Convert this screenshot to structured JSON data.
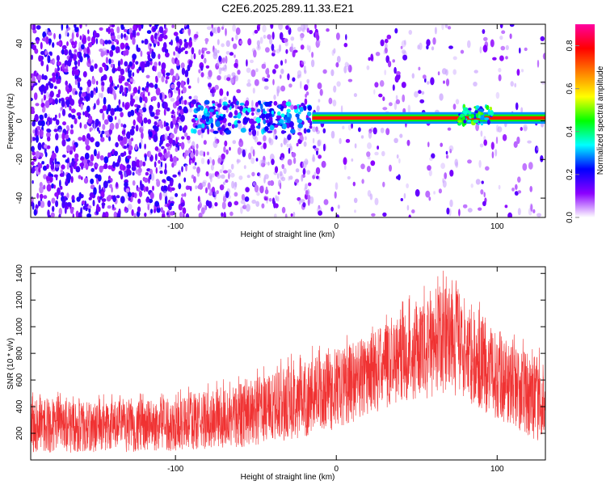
{
  "title": "C2E6.2025.289.11.33.E21",
  "chart_data": [
    {
      "type": "heatmap",
      "xlabel": "Height of straight line (km)",
      "ylabel": "Frequency (Hz)",
      "xlim": [
        -190,
        130
      ],
      "ylim": [
        -50,
        50
      ],
      "xticks": [
        -100,
        0,
        100
      ],
      "xtick_labels": [
        "-100",
        "0",
        "100"
      ],
      "yticks": [
        -40,
        -20,
        0,
        20,
        40
      ],
      "ytick_labels": [
        "-40",
        "-20",
        "0",
        "20",
        "40"
      ],
      "colorbar": {
        "label": "Normalized spectral amplitude",
        "range": [
          0,
          0.9
        ],
        "ticks": [
          0.0,
          0.2,
          0.4,
          0.6,
          0.8
        ],
        "tick_labels": [
          "0.0",
          "0.2",
          "0.4",
          "0.6",
          "0.8"
        ],
        "colors": [
          "#ffffff",
          "#8b00ff",
          "#0000ff",
          "#00ffff",
          "#00ff00",
          "#ffff00",
          "#ff8000",
          "#ff0000",
          "#ff00a0"
        ]
      },
      "bands": [
        {
          "x_start": -90,
          "x_end": -15,
          "freq_center": 2,
          "freq_width": 10,
          "amplitude": 0.3
        },
        {
          "x_start": -15,
          "x_end": 130,
          "freq_center": 1.5,
          "freq_width": 3,
          "amplitude": 0.85
        },
        {
          "x_start": 75,
          "x_end": 97,
          "freq_center": 3,
          "freq_width": 6,
          "amplitude": 0.45
        }
      ],
      "noise_density": [
        {
          "x_start": -190,
          "x_end": -90,
          "density": 0.9
        },
        {
          "x_start": -90,
          "x_end": -10,
          "density": 0.5
        },
        {
          "x_start": -10,
          "x_end": 130,
          "density": 0.15
        }
      ]
    },
    {
      "type": "line",
      "xlabel": "Height of straight line (km)",
      "ylabel": "SNR (10 * v/v)",
      "xlim": [
        -190,
        130
      ],
      "ylim": [
        0,
        1450
      ],
      "xticks": [
        -100,
        0,
        100
      ],
      "xtick_labels": [
        "-100",
        "0",
        "100"
      ],
      "yticks": [
        200,
        400,
        600,
        800,
        1000,
        1200,
        1400
      ],
      "ytick_labels": [
        "200",
        "400",
        "600",
        "800",
        "1000",
        "1200",
        "1400"
      ],
      "color": "#f03232",
      "envelope": {
        "x": [
          -190,
          -160,
          -130,
          -100,
          -80,
          -60,
          -40,
          -20,
          0,
          20,
          40,
          60,
          70,
          80,
          100,
          120,
          130
        ],
        "low": [
          20,
          20,
          25,
          30,
          40,
          50,
          80,
          120,
          180,
          280,
          380,
          400,
          420,
          380,
          250,
          120,
          60
        ],
        "high": [
          520,
          470,
          480,
          500,
          560,
          620,
          700,
          800,
          880,
          1000,
          1150,
          1280,
          1440,
          1250,
          1000,
          850,
          800
        ]
      }
    }
  ]
}
